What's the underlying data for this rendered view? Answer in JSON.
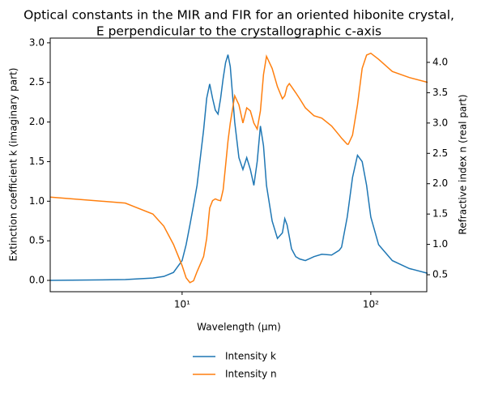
{
  "chart_data": {
    "type": "line",
    "title": "Optical constants in the MIR and FIR for an oriented hibonite crystal,",
    "subtitle": "E perpendicular to the crystallographic c-axis",
    "x_label": "Wavelength (μm)",
    "y_label": "Extinction coefficient k (imaginary part)",
    "y2_label": "Refractive index n (real part)",
    "x_scale": "log",
    "x": [
      2,
      5,
      7,
      8,
      9,
      10,
      10.5,
      11,
      11.5,
      12,
      13,
      13.5,
      14,
      14.5,
      15,
      15.5,
      16,
      16.5,
      17,
      17.5,
      18,
      19,
      20,
      21,
      22,
      23,
      24,
      25,
      26,
      27,
      28,
      30,
      32,
      34,
      35,
      36,
      37,
      38,
      40,
      42,
      45,
      50,
      55,
      62,
      68,
      70,
      75,
      76,
      80,
      85,
      90,
      95,
      100,
      110,
      130,
      160,
      200
    ],
    "series": [
      {
        "name": "Intensity k",
        "color": "#1f77b4",
        "axis": "y",
        "values": [
          0.0,
          0.01,
          0.03,
          0.05,
          0.1,
          0.25,
          0.45,
          0.7,
          0.95,
          1.2,
          1.9,
          2.3,
          2.48,
          2.3,
          2.15,
          2.1,
          2.3,
          2.55,
          2.75,
          2.85,
          2.7,
          2.0,
          1.55,
          1.4,
          1.55,
          1.4,
          1.2,
          1.5,
          1.95,
          1.7,
          1.2,
          0.75,
          0.53,
          0.6,
          0.78,
          0.7,
          0.55,
          0.4,
          0.3,
          0.27,
          0.25,
          0.3,
          0.33,
          0.32,
          0.38,
          0.42,
          0.8,
          0.9,
          1.3,
          1.58,
          1.5,
          1.2,
          0.8,
          0.45,
          0.25,
          0.15,
          0.09
        ]
      },
      {
        "name": "Intensity n",
        "color": "#ff7f0e",
        "axis": "y2",
        "values": [
          1.78,
          1.68,
          1.5,
          1.3,
          1.0,
          0.65,
          0.45,
          0.37,
          0.4,
          0.55,
          0.8,
          1.1,
          1.6,
          1.72,
          1.75,
          1.73,
          1.72,
          1.9,
          2.3,
          2.7,
          3.0,
          3.45,
          3.3,
          3.0,
          3.25,
          3.2,
          3.0,
          2.9,
          3.2,
          3.8,
          4.1,
          3.9,
          3.6,
          3.4,
          3.45,
          3.6,
          3.65,
          3.6,
          3.5,
          3.4,
          3.25,
          3.12,
          3.08,
          2.95,
          2.8,
          2.75,
          2.65,
          2.65,
          2.8,
          3.3,
          3.9,
          4.12,
          4.15,
          4.05,
          3.85,
          3.75,
          3.67
        ]
      }
    ],
    "xlim": [
      2,
      198
    ],
    "xticks": [
      {
        "value": 10,
        "label": "10¹"
      },
      {
        "value": 100,
        "label": "10²"
      }
    ],
    "ylim": [
      -0.143,
      3.06
    ],
    "yticks": [
      {
        "value": 0,
        "label": "0.0"
      },
      {
        "value": 0.5,
        "label": "0.5"
      },
      {
        "value": 1,
        "label": "1.0"
      },
      {
        "value": 1.5,
        "label": "1.5"
      },
      {
        "value": 2,
        "label": "2.0"
      },
      {
        "value": 2.5,
        "label": "2.5"
      },
      {
        "value": 3,
        "label": "3.0"
      }
    ],
    "y2lim": [
      0.22,
      4.4
    ],
    "y2ticks": [
      {
        "value": 0.5,
        "label": "0.5"
      },
      {
        "value": 1,
        "label": "1.0"
      },
      {
        "value": 1.5,
        "label": "1.5"
      },
      {
        "value": 2,
        "label": "2.0"
      },
      {
        "value": 2.5,
        "label": "2.5"
      },
      {
        "value": 3,
        "label": "3.0"
      },
      {
        "value": 3.5,
        "label": "3.5"
      },
      {
        "value": 4,
        "label": "4.0"
      }
    ],
    "grid": false,
    "legend": "bottom"
  }
}
